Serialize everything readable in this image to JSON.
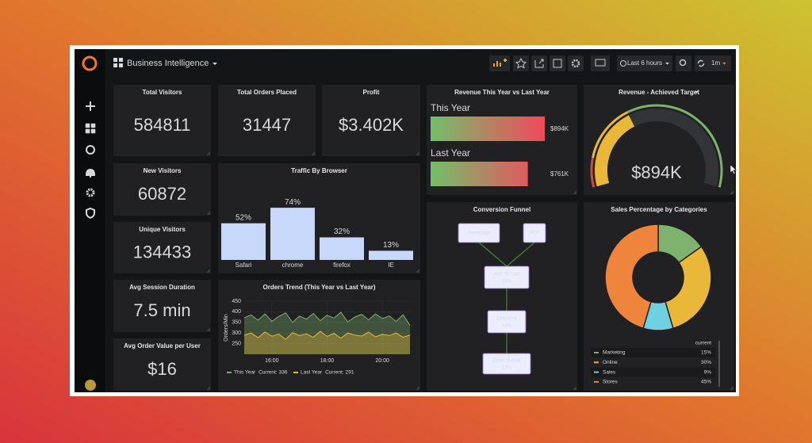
{
  "header": {
    "title": "Business Intelligence",
    "time_range": "Last 6 hours",
    "refresh": "1m"
  },
  "stats": [
    {
      "title": "Total Visitors",
      "value": 584811
    },
    {
      "title": "Total Orders Placed",
      "value": 31447
    },
    {
      "title": "Profit",
      "value": 3402,
      "value_label": "$3.402K"
    },
    {
      "title": "New Visitors",
      "value": 60872
    },
    {
      "title": "Unique Visitors",
      "value": 134433
    },
    {
      "title": "Avg Session Duration",
      "value": 7.5,
      "value_label": "7.5 min"
    },
    {
      "title": "Avg Order Value per User",
      "value": 16,
      "value_label": "$16"
    }
  ],
  "chart_data": [
    {
      "type": "hbar",
      "title": "Revenue This Year vs Last Year",
      "categories": [
        "This Year",
        "Last Year"
      ],
      "values": [
        894,
        761
      ],
      "value_labels": [
        "$894K",
        "$761K"
      ],
      "xlim": [
        0,
        900
      ],
      "colors": [
        "#73bf69",
        "#f2495c"
      ]
    },
    {
      "type": "gauge",
      "title": "Revenue - Achieved Target",
      "value": 894,
      "value_label": "$894K",
      "range": [
        0,
        2400
      ],
      "color": "#eab839",
      "thresholds": [
        {
          "value": 0,
          "color": "#d44a3a"
        },
        {
          "value": 300,
          "color": "#eab839"
        },
        {
          "value": 900,
          "color": "#7eb26d"
        }
      ]
    },
    {
      "type": "bar",
      "title": "Traffic By Browser",
      "categories": [
        "Safari",
        "chrome",
        "firefox",
        "IE"
      ],
      "values": [
        52,
        74,
        32,
        13
      ],
      "value_labels": [
        "52%",
        "74%",
        "32%",
        "13%"
      ],
      "ylim": [
        0,
        100
      ],
      "color": "#c8d8fa"
    },
    {
      "type": "line",
      "title": "Orders Trend (This Year vs Last Year)",
      "ylabel": "Orders/Min",
      "x": [
        15,
        15.25,
        15.5,
        15.75,
        16,
        16.25,
        16.5,
        16.75,
        17,
        17.25,
        17.5,
        17.75,
        18,
        18.25,
        18.5,
        18.75,
        19,
        19.25,
        19.5,
        19.75,
        20,
        20.25,
        20.5,
        20.75,
        21
      ],
      "xlim": [
        15,
        21
      ],
      "xticks": [
        {
          "value": 16,
          "label": "16:00"
        },
        {
          "value": 18,
          "label": "18:00"
        },
        {
          "value": 20,
          "label": "20:00"
        }
      ],
      "ylim": [
        200,
        450
      ],
      "yticks": [
        250,
        300,
        350,
        400,
        450
      ],
      "grid": true,
      "legend_stat": "Current:",
      "series": [
        {
          "name": "This Year",
          "color": "#7eb26d",
          "current": 336,
          "values": [
            372,
            385,
            360,
            390,
            355,
            378,
            395,
            350,
            380,
            365,
            392,
            358,
            384,
            370,
            398,
            352,
            375,
            388,
            362,
            390,
            368,
            380,
            355,
            386,
            336
          ]
        },
        {
          "name": "Last Year",
          "color": "#eab839",
          "current": 291,
          "values": [
            290,
            300,
            278,
            305,
            285,
            295,
            270,
            302,
            288,
            296,
            280,
            308,
            284,
            298,
            276,
            300,
            290,
            286,
            304,
            282,
            294,
            288,
            300,
            280,
            291
          ]
        }
      ]
    },
    {
      "type": "pie",
      "donut": true,
      "title": "Sales Percentage by Categories",
      "categories": [
        "Marketing",
        "Online",
        "Sales",
        "Stores"
      ],
      "values": [
        15,
        30,
        9,
        45
      ],
      "value_labels": [
        "15%",
        "30%",
        "9%",
        "45%"
      ],
      "colors": [
        "#7eb26d",
        "#eab839",
        "#6ed0e0",
        "#ef843c"
      ],
      "legend_header": "current"
    }
  ],
  "funnel": {
    "title": "Conversion Funnel",
    "nodes": [
      {
        "label": "Homepage"
      },
      {
        "label": "PDP"
      },
      {
        "label": "Add To Cart",
        "value": "59%"
      },
      {
        "label": "Checkout",
        "value": "33%"
      },
      {
        "label": "Order Submit",
        "value": "13%"
      }
    ]
  }
}
